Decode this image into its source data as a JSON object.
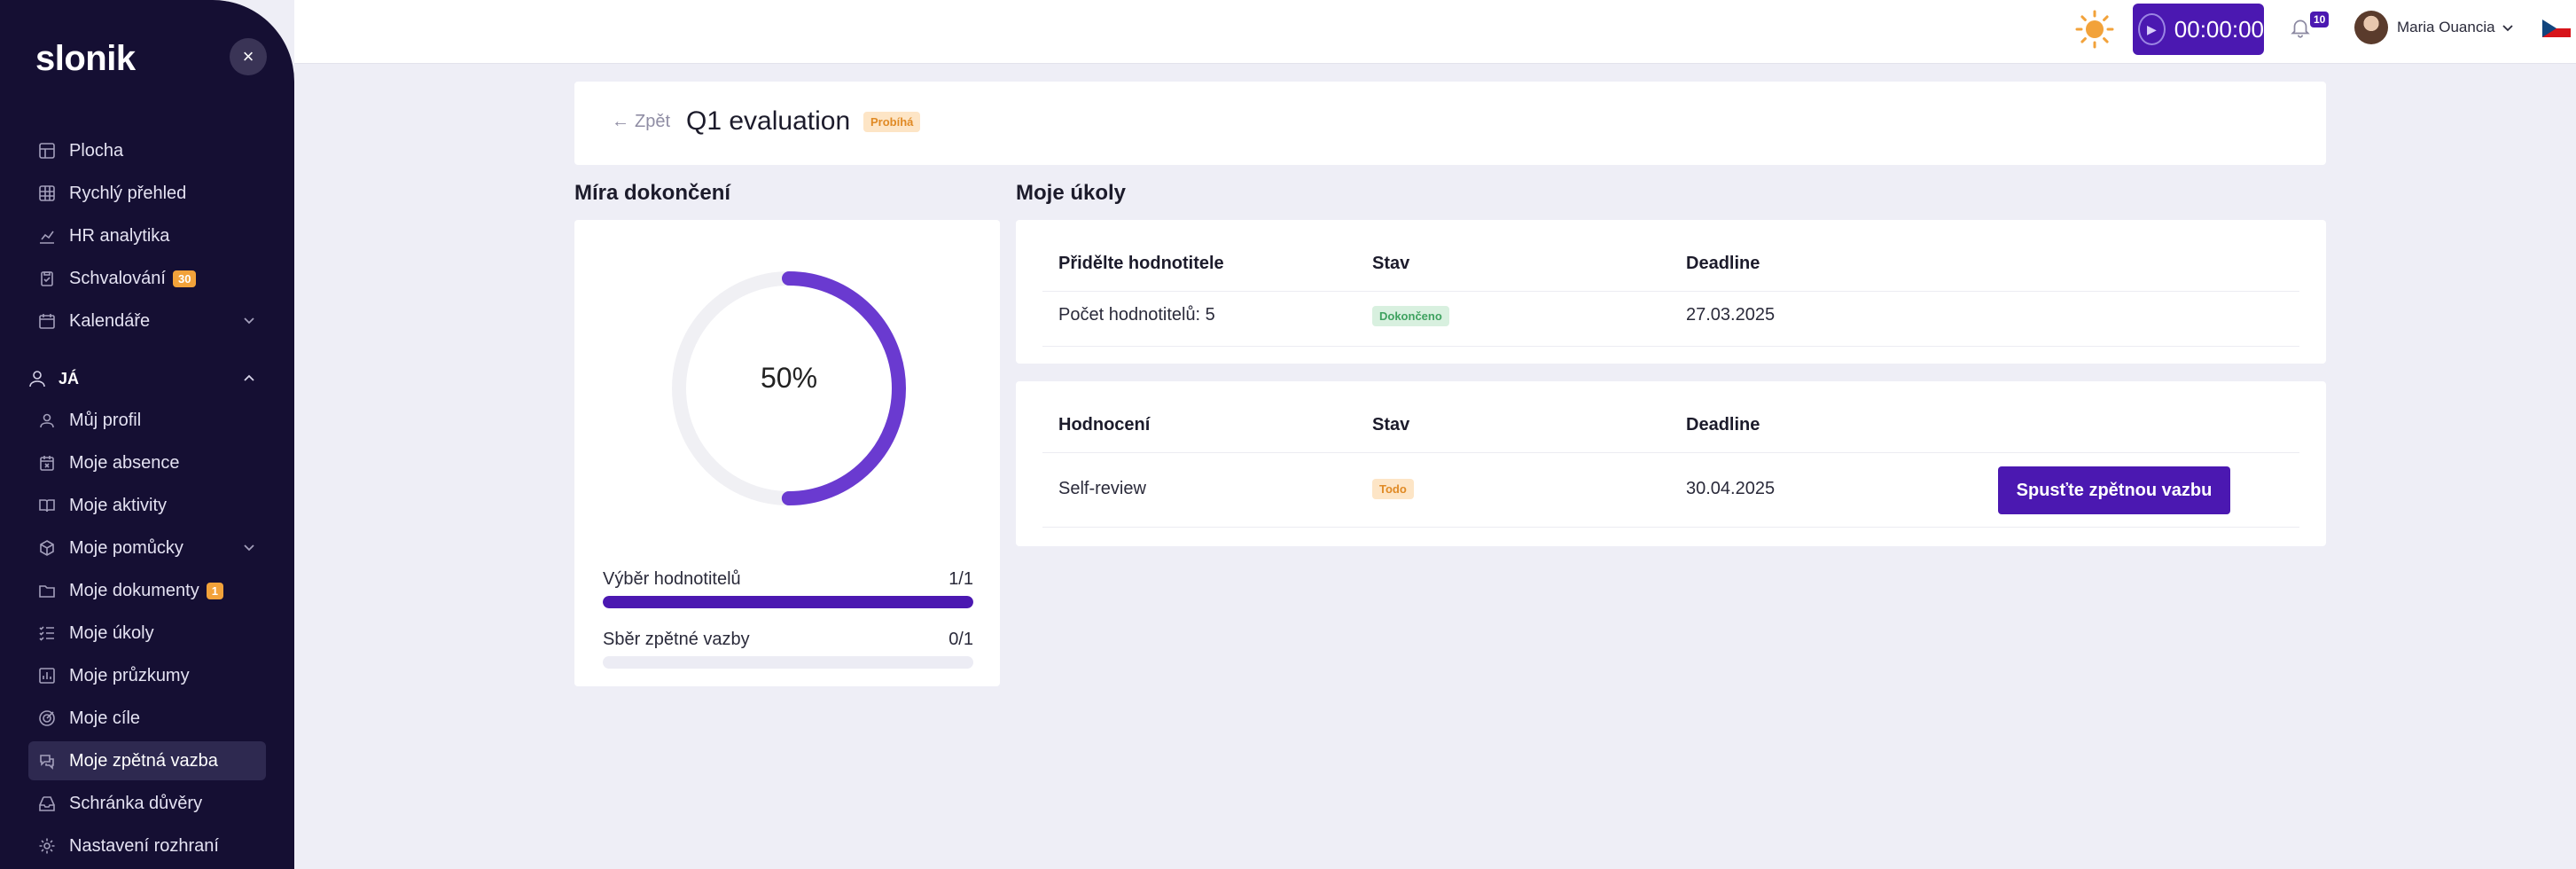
{
  "sidebar": {
    "logo": "slonik",
    "items": [
      {
        "label": "Plocha",
        "icon": "layout-icon"
      },
      {
        "label": "Rychlý přehled",
        "icon": "grid-icon"
      },
      {
        "label": "HR analytika",
        "icon": "chart-icon"
      },
      {
        "label": "Schvalování",
        "icon": "clipboard-icon",
        "badge": "30"
      },
      {
        "label": "Kalendáře",
        "icon": "calendar-icon"
      }
    ],
    "section": "JÁ",
    "me_items": [
      {
        "label": "Můj profil",
        "icon": "user-icon"
      },
      {
        "label": "Moje absence",
        "icon": "calendar-x-icon"
      },
      {
        "label": "Moje aktivity",
        "icon": "book-icon"
      },
      {
        "label": "Moje pomůcky",
        "icon": "cube-icon"
      },
      {
        "label": "Moje dokumenty",
        "icon": "folder-icon",
        "badge": "1"
      },
      {
        "label": "Moje úkoly",
        "icon": "list-check-icon"
      },
      {
        "label": "Moje průzkumy",
        "icon": "survey-icon"
      },
      {
        "label": "Moje cíle",
        "icon": "target-icon"
      },
      {
        "label": "Moje zpětná vazba",
        "icon": "chat-icon",
        "active": true
      },
      {
        "label": "Schránka důvěry",
        "icon": "inbox-icon"
      },
      {
        "label": "Nastavení rozhraní",
        "icon": "gear-icon"
      }
    ]
  },
  "topbar": {
    "timer": "00:00:00",
    "notifications": "10",
    "user_name": "Maria Ouancia"
  },
  "header": {
    "back": "Zpět",
    "title": "Q1 evaluation",
    "status": "Probíhá"
  },
  "completion": {
    "title": "Míra dokončení",
    "percent_label": "50%",
    "percent": 0.5,
    "rows": [
      {
        "label": "Výběr hodnotitelů",
        "value": "1/1",
        "fraction": 1.0
      },
      {
        "label": "Sběr zpětné vazby",
        "value": "0/1",
        "fraction": 0.0
      }
    ]
  },
  "tasks": {
    "title": "Moje úkoly",
    "table1": {
      "col1": "Přidělte hodnotitele",
      "col2": "Stav",
      "col3": "Deadline",
      "row": {
        "name": "Počet hodnotitelů: 5",
        "status": "Dokončeno",
        "deadline": "27.03.2025"
      }
    },
    "table2": {
      "col1": "Hodnocení",
      "col2": "Stav",
      "col3": "Deadline",
      "row": {
        "name": "Self-review",
        "status": "Todo",
        "deadline": "30.04.2025",
        "action": "Spusťte zpětnou vazbu"
      }
    }
  },
  "colors": {
    "accent": "#4b18b1",
    "sidebar_bg": "#150f33",
    "donut": "#6a3ad0"
  }
}
